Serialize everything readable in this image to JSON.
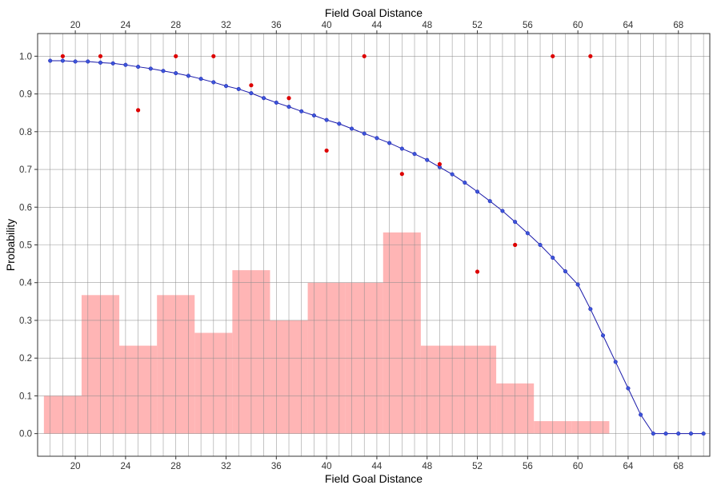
{
  "chart_data": {
    "type": "line",
    "title": "",
    "xlabel_top": "Field Goal Distance",
    "xlabel": "Field Goal Distance",
    "ylabel": "Probability",
    "xlim": [
      17,
      70.5
    ],
    "ylim": [
      -0.06,
      1.06
    ],
    "x_ticks": [
      20,
      24,
      28,
      32,
      36,
      40,
      44,
      48,
      52,
      56,
      60,
      64,
      68
    ],
    "y_ticks": [
      0.0,
      0.1,
      0.2,
      0.3,
      0.4,
      0.5,
      0.6,
      0.7,
      0.8,
      0.9,
      1.0
    ],
    "y_tick_labels": [
      "0.0",
      "0.1",
      "0.2",
      "0.3",
      "0.4",
      "0.5",
      "0.6",
      "0.7",
      "0.8",
      "0.9",
      "1.0"
    ],
    "grid": true,
    "colors": {
      "curve": "#1a1aaa",
      "curve_point": "#3b55d9",
      "observed_point": "#dd0000",
      "histogram": "#ff9999",
      "grid": "#8c8c8c",
      "panel_border": "#333333"
    },
    "series": [
      {
        "type": "line",
        "x": [
          18,
          19,
          20,
          21,
          22,
          23,
          24,
          25,
          26,
          27,
          28,
          29,
          30,
          31,
          32,
          33,
          34,
          35,
          36,
          37,
          38,
          39,
          40,
          41,
          42,
          43,
          44,
          45,
          46,
          47,
          48,
          49,
          50,
          51,
          52,
          53,
          54,
          55,
          56,
          57,
          58,
          59,
          60,
          61,
          62,
          63,
          64,
          65,
          66,
          67,
          68,
          69,
          70
        ],
        "values": [
          0.988,
          0.988,
          0.986,
          0.986,
          0.983,
          0.981,
          0.977,
          0.972,
          0.967,
          0.961,
          0.955,
          0.948,
          0.94,
          0.931,
          0.921,
          0.913,
          0.902,
          0.889,
          0.877,
          0.866,
          0.854,
          0.843,
          0.831,
          0.821,
          0.808,
          0.795,
          0.783,
          0.77,
          0.755,
          0.741,
          0.725,
          0.706,
          0.687,
          0.665,
          0.641,
          0.616,
          0.59,
          0.561,
          0.531,
          0.5,
          0.466,
          0.43,
          0.395,
          0.33,
          0.26,
          0.19,
          0.12,
          0.05,
          0.0,
          0.0,
          0.0,
          0.0,
          0.0
        ]
      },
      {
        "type": "scatter",
        "x": [
          19,
          22,
          25,
          28,
          31,
          34,
          37,
          40,
          43,
          46,
          49,
          52,
          55,
          58,
          61
        ],
        "values": [
          1.0,
          1.0,
          0.857,
          1.0,
          1.0,
          0.923,
          0.889,
          0.75,
          1.0,
          0.688,
          0.714,
          0.429,
          0.5,
          1.0,
          1.0
        ]
      },
      {
        "type": "bar",
        "bin_edges": [
          17.5,
          20.5,
          23.5,
          26.5,
          29.5,
          32.5,
          35.5,
          38.5,
          41.5,
          44.5,
          47.5,
          50.5,
          53.5,
          56.5,
          59.5,
          62.5
        ],
        "values": [
          0.1,
          0.367,
          0.233,
          0.367,
          0.267,
          0.433,
          0.3,
          0.4,
          0.4,
          0.533,
          0.233,
          0.233,
          0.133,
          0.033,
          0.033
        ]
      }
    ]
  }
}
